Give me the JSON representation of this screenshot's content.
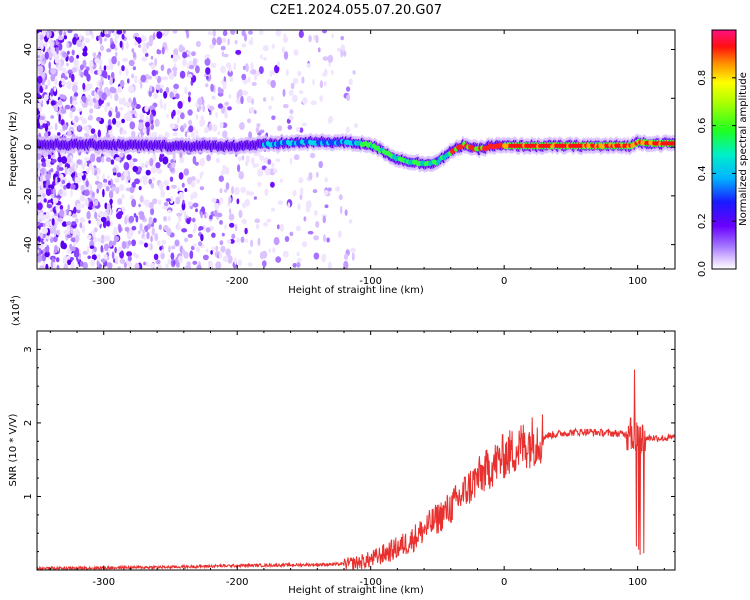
{
  "chart_data": [
    {
      "type": "heatmap",
      "title": "C2E1.2024.055.07.20.G07",
      "xlabel": "Height of straight line (km)",
      "ylabel": "Frequency (Hz)",
      "xlim": [
        -350,
        128
      ],
      "ylim": [
        -50,
        48
      ],
      "x_ticks": [
        -300,
        -200,
        -100,
        0,
        100
      ],
      "y_ticks": [
        -40,
        -20,
        0,
        20,
        40
      ],
      "colorbar": {
        "label": "Normalized spectral amplitude",
        "range": [
          0,
          1
        ],
        "ticks": [
          0.0,
          0.2,
          0.4,
          0.6,
          0.8
        ],
        "colors": [
          "#ffffff",
          "#e8d5ff",
          "#b07cff",
          "#7a00ff",
          "#0033ff",
          "#00c8ff",
          "#00ff80",
          "#80ff00",
          "#ffff00",
          "#ff8000",
          "#ff0000",
          "#ff0080"
        ]
      },
      "ridge": {
        "x": [
          -350,
          -300,
          -250,
          -200,
          -150,
          -120,
          -100,
          -90,
          -80,
          -70,
          -60,
          -50,
          -40,
          -30,
          -20,
          -10,
          0,
          20,
          50,
          80,
          95,
          100,
          110,
          128
        ],
        "y": [
          1,
          1,
          0.5,
          0.5,
          2,
          2,
          1,
          -2,
          -5,
          -6,
          -7,
          -6,
          -2,
          1,
          -1,
          0.5,
          0.5,
          0.5,
          0.5,
          0.5,
          0.5,
          2,
          1.5,
          1.5
        ]
      }
    },
    {
      "type": "line",
      "title": "",
      "xlabel": "Height of straight line (km)",
      "ylabel": "SNR (10 * V/V)",
      "y_scale_label": "(x10",
      "y_scale_exponent": "4",
      "y_scale_close": ")",
      "xlim": [
        -350,
        128
      ],
      "ylim": [
        0,
        3.25
      ],
      "x_ticks": [
        -300,
        -200,
        -100,
        0,
        100
      ],
      "y_ticks": [
        1,
        2,
        3
      ],
      "color": "#e8302e",
      "series": [
        {
          "x": [
            -350,
            -300,
            -250,
            -200,
            -150,
            -120,
            -110,
            -100,
            -90,
            -80,
            -70,
            -60,
            -50,
            -40,
            -30,
            -20,
            -10,
            0,
            10,
            20,
            30,
            40,
            50,
            60,
            70,
            80,
            90,
            95,
            100,
            102,
            105,
            110,
            120,
            128
          ],
          "y": [
            0.02,
            0.03,
            0.04,
            0.06,
            0.07,
            0.08,
            0.1,
            0.14,
            0.22,
            0.3,
            0.4,
            0.55,
            0.7,
            0.85,
            1.05,
            1.25,
            1.4,
            1.55,
            1.65,
            1.75,
            1.82,
            1.85,
            1.87,
            1.88,
            1.87,
            1.86,
            1.85,
            1.85,
            1.8,
            1.8,
            1.79,
            1.8,
            1.79,
            1.8
          ]
        }
      ]
    }
  ]
}
